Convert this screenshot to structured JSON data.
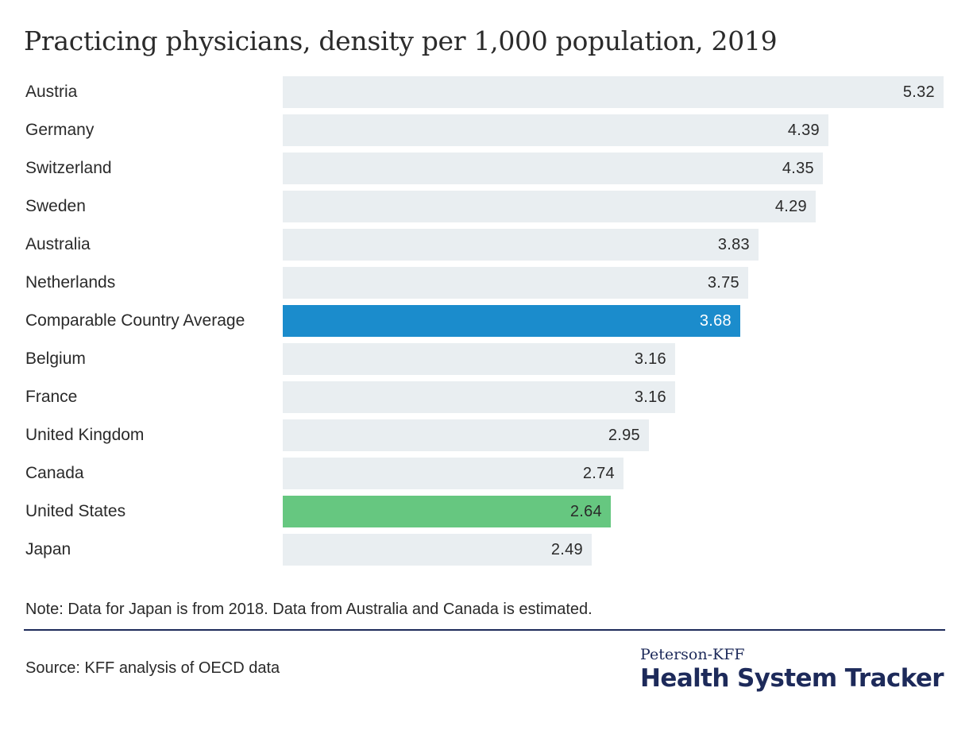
{
  "chart_data": {
    "type": "bar",
    "orientation": "horizontal",
    "title": "Practicing physicians, density per 1,000 population, 2019",
    "categories": [
      "Austria",
      "Germany",
      "Switzerland",
      "Sweden",
      "Australia",
      "Netherlands",
      "Comparable Country Average",
      "Belgium",
      "France",
      "United Kingdom",
      "Canada",
      "United States",
      "Japan"
    ],
    "values": [
      5.32,
      4.39,
      4.35,
      4.29,
      3.83,
      3.75,
      3.68,
      3.16,
      3.16,
      2.95,
      2.74,
      2.64,
      2.49
    ],
    "value_labels": [
      "5.32",
      "4.39",
      "4.35",
      "4.29",
      "3.83",
      "3.75",
      "3.68",
      "3.16",
      "3.16",
      "2.95",
      "2.74",
      "2.64",
      "2.49"
    ],
    "xlim": [
      0,
      5.32
    ],
    "grid": false,
    "colors": {
      "default": "#e9eef1",
      "Comparable Country Average": "#1b8ccc",
      "United States": "#66c780"
    }
  },
  "note": "Note: Data for Japan is from 2018. Data from Australia and Canada is estimated.",
  "source": "Source: KFF analysis of OECD data",
  "logo": {
    "top": "Peterson-KFF",
    "bottom": "Health System Tracker"
  }
}
